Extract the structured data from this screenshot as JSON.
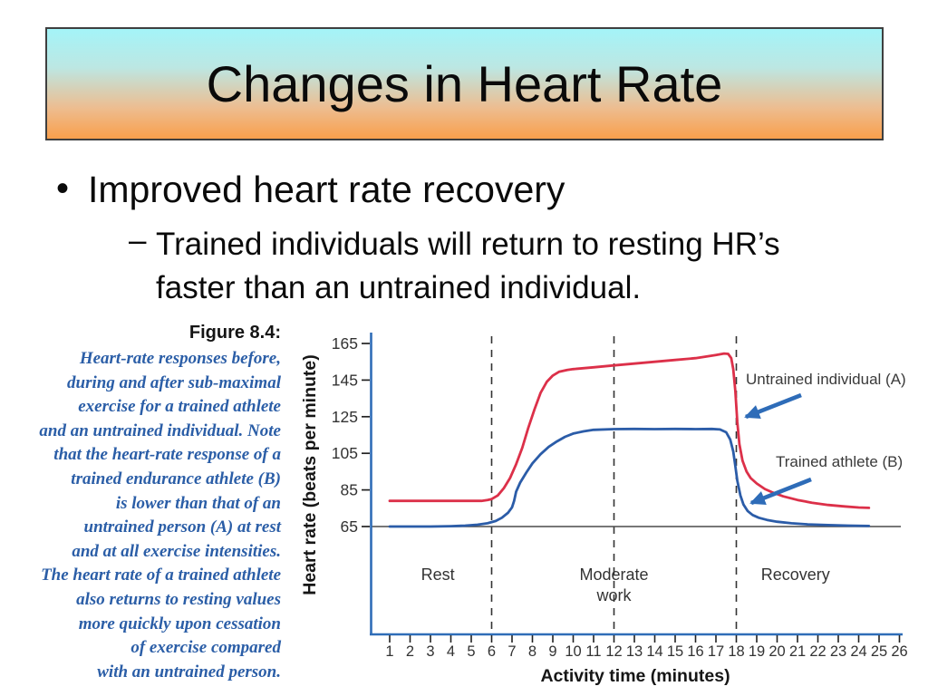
{
  "slide": {
    "title": "Changes in Heart Rate",
    "banner_colors": {
      "top": "#a4f4f8",
      "mid1": "#bce7e3",
      "mid2": "#edbd90",
      "bottom": "#f99f4c",
      "border": "#3f3f3f"
    },
    "bullet": {
      "glyph": "•",
      "text": "Improved heart rate recovery"
    },
    "sub_bullet": {
      "glyph": "–",
      "lines": [
        "Trained individuals will return to resting HR’s",
        "faster than an untrained individual."
      ]
    }
  },
  "caption": {
    "heading": "Figure 8.4:",
    "color": "#2b5ea7",
    "lines": [
      "Heart-rate responses before,",
      "during and after sub-maximal",
      "exercise for a trained athlete",
      "and an untrained individual. Note",
      "that the heart-rate response of a",
      "trained endurance athlete (B)",
      "is lower than that of an",
      "untrained person (A) at rest",
      "and at all exercise intensities.",
      "The heart rate of a trained athlete",
      "also returns to resting values",
      "more quickly upon cessation",
      "of exercise compared",
      "with an untrained person."
    ]
  },
  "chart_data": {
    "type": "line",
    "title": "Figure 8.4",
    "xlabel": "Activity time (minutes)",
    "ylabel": "Heart rate (beats per minute)",
    "xlim": [
      1,
      26
    ],
    "ylim": [
      65,
      165
    ],
    "grid": false,
    "legend_position": "inline-annotations",
    "x_ticks": [
      1,
      2,
      3,
      4,
      5,
      6,
      7,
      8,
      9,
      10,
      11,
      12,
      13,
      14,
      15,
      16,
      17,
      18,
      19,
      20,
      21,
      22,
      23,
      24,
      25,
      26
    ],
    "y_ticks": [
      65,
      85,
      105,
      125,
      145,
      165
    ],
    "baseline_y": 65,
    "phase_dividers_x": [
      6,
      12,
      18
    ],
    "phases": [
      {
        "lines": [
          "Rest"
        ],
        "label_x": 3.36
      },
      {
        "lines": [
          "Moderate",
          "work"
        ],
        "label_x": 12
      },
      {
        "lines": [
          "Recovery"
        ],
        "label_x": 20.9
      }
    ],
    "axis_color": "#2f6db7",
    "arrow_color": "#2e6cb8",
    "series": [
      {
        "name": "Untrained individual (A)",
        "color": "#dc3049",
        "points": [
          [
            1,
            79
          ],
          [
            2,
            79
          ],
          [
            3,
            79
          ],
          [
            4,
            79
          ],
          [
            5,
            79
          ],
          [
            5.5,
            79
          ],
          [
            5.8,
            79.5
          ],
          [
            6,
            80
          ],
          [
            6.3,
            82
          ],
          [
            6.6,
            86
          ],
          [
            6.9,
            91.5
          ],
          [
            7.2,
            99
          ],
          [
            7.5,
            108
          ],
          [
            7.8,
            119
          ],
          [
            8.1,
            129
          ],
          [
            8.4,
            138
          ],
          [
            8.7,
            144
          ],
          [
            9,
            147.5
          ],
          [
            9.3,
            149.5
          ],
          [
            9.7,
            150.5
          ],
          [
            10,
            151
          ],
          [
            11,
            152
          ],
          [
            12,
            153
          ],
          [
            13,
            154
          ],
          [
            14,
            155
          ],
          [
            15,
            156
          ],
          [
            16,
            157
          ],
          [
            16.5,
            157.8
          ],
          [
            17,
            158.7
          ],
          [
            17.4,
            159.5
          ],
          [
            17.6,
            159.3
          ],
          [
            17.75,
            157
          ],
          [
            17.85,
            151
          ],
          [
            17.95,
            139
          ],
          [
            18.05,
            122
          ],
          [
            18.15,
            110
          ],
          [
            18.3,
            101
          ],
          [
            18.5,
            95
          ],
          [
            18.7,
            91.5
          ],
          [
            19,
            88.5
          ],
          [
            19.4,
            85.5
          ],
          [
            19.8,
            83.5
          ],
          [
            20.3,
            81.5
          ],
          [
            21,
            79.5
          ],
          [
            21.7,
            78
          ],
          [
            22.5,
            76.8
          ],
          [
            23.3,
            76
          ],
          [
            24,
            75.4
          ],
          [
            24.5,
            75.2
          ]
        ]
      },
      {
        "name": "Trained athlete (B)",
        "color": "#2b5ca8",
        "points": [
          [
            1,
            65
          ],
          [
            2,
            65
          ],
          [
            3,
            65
          ],
          [
            4,
            65.2
          ],
          [
            4.7,
            65.5
          ],
          [
            5.3,
            66
          ],
          [
            5.8,
            66.8
          ],
          [
            6.2,
            68
          ],
          [
            6.5,
            69.8
          ],
          [
            6.8,
            72.5
          ],
          [
            7,
            75.5
          ],
          [
            7.1,
            79
          ],
          [
            7.2,
            84
          ],
          [
            7.4,
            89
          ],
          [
            7.7,
            94.5
          ],
          [
            8,
            99.5
          ],
          [
            8.4,
            104.5
          ],
          [
            8.8,
            108.5
          ],
          [
            9.2,
            111.5
          ],
          [
            9.6,
            114
          ],
          [
            10,
            115.8
          ],
          [
            10.5,
            117
          ],
          [
            11,
            117.8
          ],
          [
            12,
            118.2
          ],
          [
            13,
            118.3
          ],
          [
            14,
            118.2
          ],
          [
            15,
            118.3
          ],
          [
            16,
            118.2
          ],
          [
            16.8,
            118.3
          ],
          [
            17.2,
            118
          ],
          [
            17.5,
            116.5
          ],
          [
            17.7,
            112.5
          ],
          [
            17.85,
            106
          ],
          [
            17.95,
            98
          ],
          [
            18.05,
            90
          ],
          [
            18.2,
            82
          ],
          [
            18.35,
            77
          ],
          [
            18.55,
            73.5
          ],
          [
            18.8,
            71.3
          ],
          [
            19.1,
            69.8
          ],
          [
            19.5,
            68.6
          ],
          [
            20,
            67.6
          ],
          [
            20.7,
            66.8
          ],
          [
            21.5,
            66.2
          ],
          [
            22.5,
            65.8
          ],
          [
            23.5,
            65.5
          ],
          [
            24.5,
            65.3
          ]
        ]
      }
    ]
  }
}
